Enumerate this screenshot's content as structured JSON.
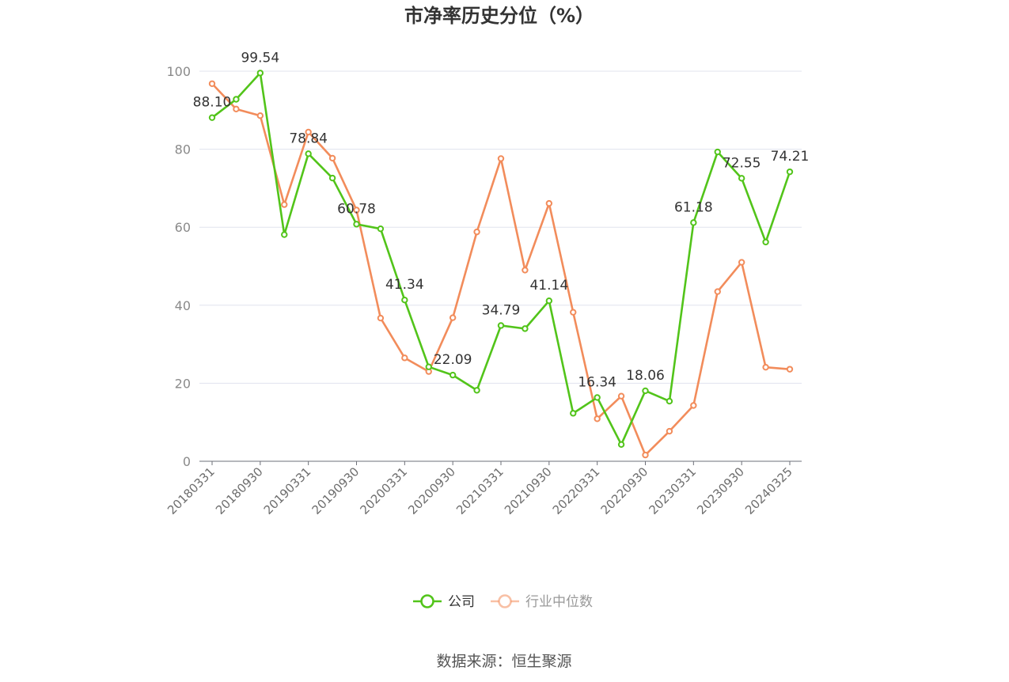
{
  "chart_data": {
    "type": "line",
    "title": "市净率历史分位（%）",
    "source_text": "数据来源：恒生聚源",
    "ylim": [
      0,
      100
    ],
    "yticks": [
      0,
      20,
      40,
      60,
      80,
      100
    ],
    "x": [
      "20180331",
      "20180630",
      "20180930",
      "20181231",
      "20190331",
      "20190630",
      "20190930",
      "20191231",
      "20200331",
      "20200630",
      "20200930",
      "20201231",
      "20210331",
      "20210630",
      "20210930",
      "20211231",
      "20220331",
      "20220630",
      "20220930",
      "20221231",
      "20230331",
      "20230630",
      "20230930",
      "20231231",
      "20240325"
    ],
    "xtick_labels": [
      "20180331",
      "20180930",
      "20190331",
      "20190930",
      "20200331",
      "20200930",
      "20210331",
      "20210930",
      "20220331",
      "20220930",
      "20230331",
      "20230930",
      "20240325"
    ],
    "grid": true,
    "legend_position": "bottom",
    "series": [
      {
        "name": "公司",
        "color": "#52c41a",
        "values": [
          88.1,
          92.8,
          99.54,
          58.1,
          78.84,
          72.6,
          60.78,
          59.6,
          41.34,
          24.2,
          22.09,
          18.2,
          34.79,
          34.0,
          41.14,
          12.3,
          16.34,
          4.3,
          18.06,
          15.4,
          61.18,
          79.3,
          72.55,
          56.2,
          74.21
        ],
        "data_labels": [
          {
            "index": 0,
            "text": "88.10"
          },
          {
            "index": 2,
            "text": "99.54"
          },
          {
            "index": 4,
            "text": "78.84"
          },
          {
            "index": 6,
            "text": "60.78"
          },
          {
            "index": 8,
            "text": "41.34"
          },
          {
            "index": 10,
            "text": "22.09"
          },
          {
            "index": 12,
            "text": "34.79"
          },
          {
            "index": 14,
            "text": "41.14"
          },
          {
            "index": 16,
            "text": "16.34"
          },
          {
            "index": 18,
            "text": "18.06"
          },
          {
            "index": 20,
            "text": "61.18"
          },
          {
            "index": 22,
            "text": "72.55"
          },
          {
            "index": 24,
            "text": "74.21"
          }
        ]
      },
      {
        "name": "行业中位数",
        "color": "#f28c5b",
        "values": [
          96.8,
          90.3,
          88.6,
          65.8,
          84.4,
          77.7,
          64.4,
          36.7,
          26.5,
          23.0,
          36.8,
          58.8,
          77.6,
          49.0,
          66.1,
          38.2,
          10.9,
          16.7,
          1.6,
          7.7,
          14.3,
          43.5,
          51.0,
          24.1,
          23.6
        ]
      }
    ]
  }
}
